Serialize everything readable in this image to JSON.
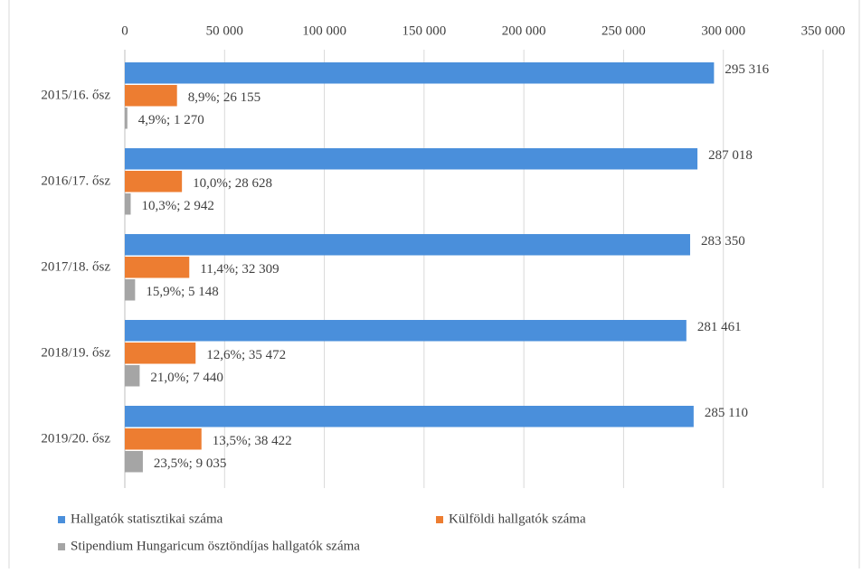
{
  "chart_data": {
    "type": "hbar",
    "categories": [
      "2015/16. ősz",
      "2016/17. ősz",
      "2017/18. ősz",
      "2018/19. ősz",
      "2019/20. ősz"
    ],
    "series": [
      {
        "name": "Hallgatók statisztikai száma",
        "color": "#4a8fdb",
        "values": [
          295316,
          287018,
          283350,
          281461,
          285110
        ],
        "value_labels": [
          "295 316",
          "287 018",
          "283 350",
          "281 461",
          "285 110"
        ]
      },
      {
        "name": "Külföldi hallgatók száma",
        "color": "#ed7d31",
        "values": [
          26155,
          28628,
          32309,
          35472,
          38422
        ],
        "value_labels": [
          "8,9%; 26 155",
          "10,0%; 28 628",
          "11,4%; 32 309",
          "12,6%; 35 472",
          "13,5%; 38 422"
        ]
      },
      {
        "name": "Stipendium Hungaricum ösztöndíjas hallgatók száma",
        "color": "#a5a5a5",
        "values": [
          1270,
          2942,
          5148,
          7440,
          9035
        ],
        "value_labels": [
          "4,9%; 1 270",
          "10,3%; 2 942",
          "15,9%; 5 148",
          "21,0%; 7 440",
          "23,5%; 9 035"
        ]
      }
    ],
    "xlim": [
      0,
      350000
    ],
    "xticks": [
      0,
      {
        "value": 50000,
        "label": "50 000"
      },
      {
        "value": 100000,
        "label": "100 000"
      },
      {
        "value": 150000,
        "label": "150 000"
      },
      {
        "value": 200000,
        "label": "200 000"
      },
      {
        "value": 250000,
        "label": "250 000"
      },
      {
        "value": 300000,
        "label": "300 000"
      },
      {
        "value": 350000,
        "label": "350 000"
      }
    ],
    "grid": true,
    "legend": "bottom"
  }
}
